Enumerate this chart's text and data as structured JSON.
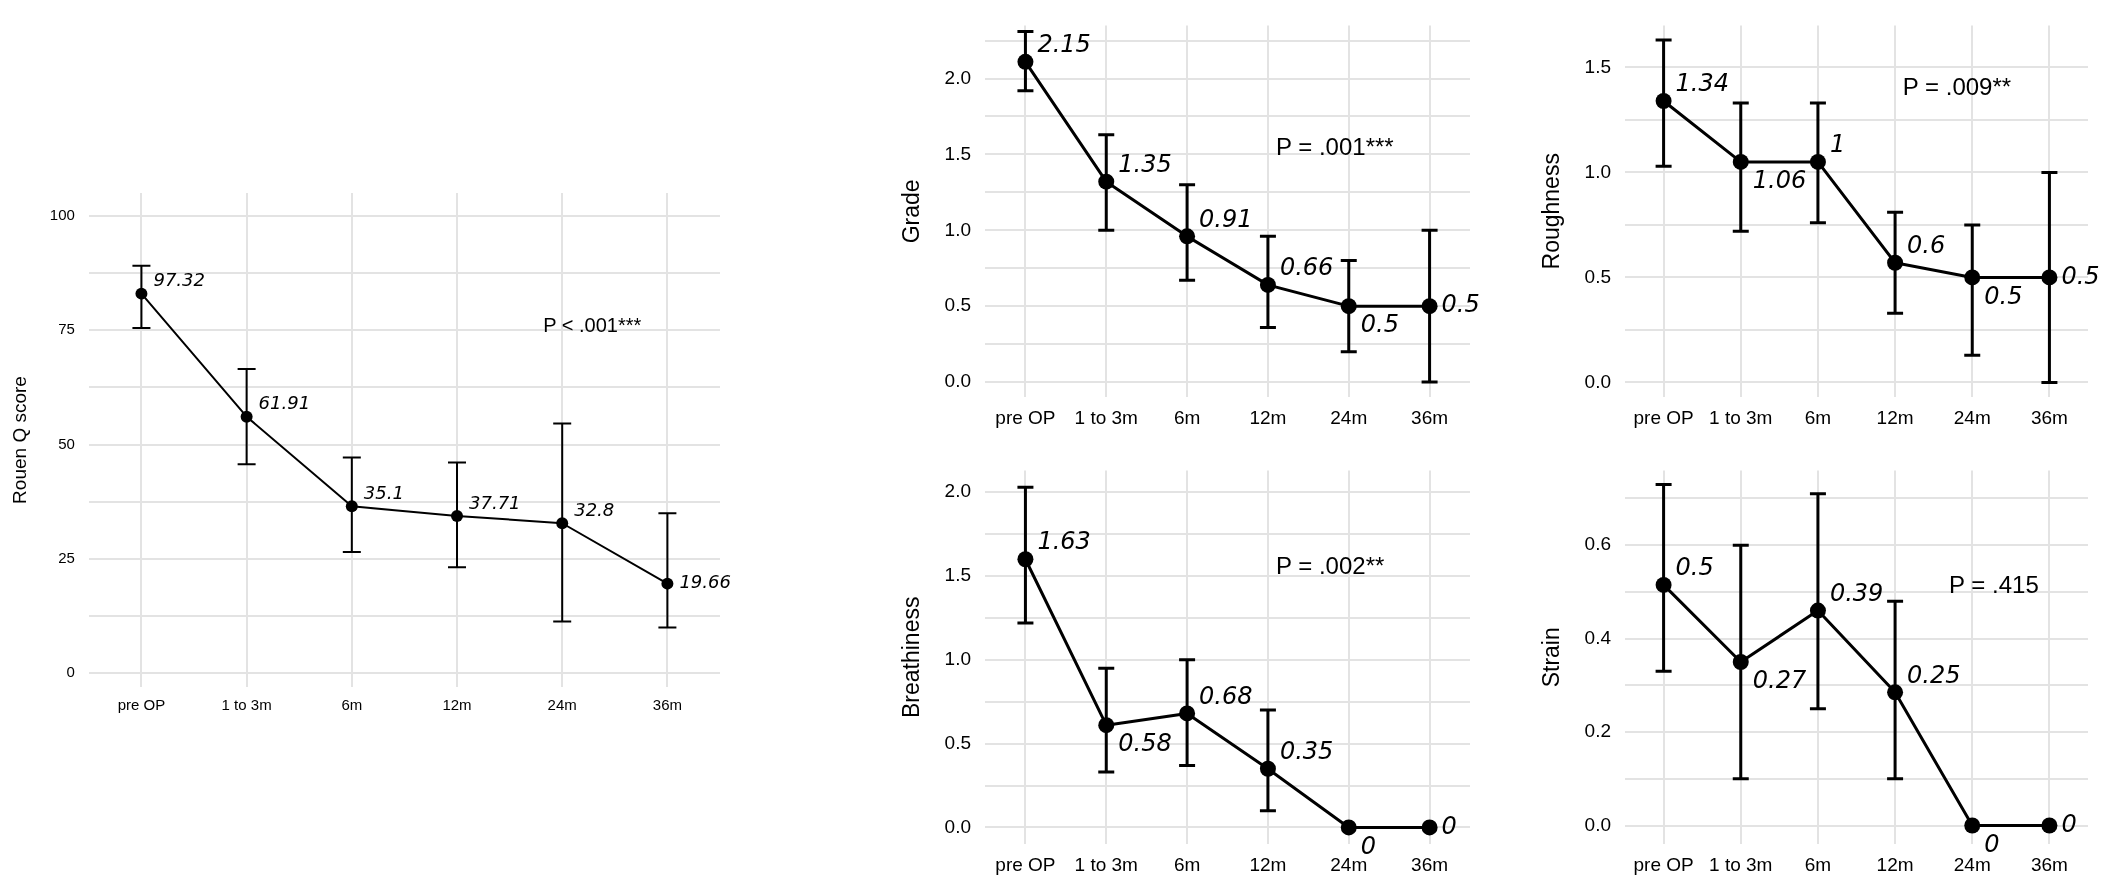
{
  "chart_data": [
    {
      "type": "line",
      "ylabel": "Rouen Q score",
      "categories": [
        "pre OP",
        "1 to 3m",
        "6m",
        "12m",
        "24m",
        "36m"
      ],
      "color": "#000000",
      "marker": "circle",
      "grid": true,
      "values": [
        83,
        56.1,
        36.5,
        34.4,
        32.8,
        19.6
      ],
      "errors": [
        [
          75.5,
          89.1
        ],
        [
          45.7,
          66.5
        ],
        [
          26.5,
          47.2
        ],
        [
          23.2,
          46.1
        ],
        [
          11.3,
          54.6
        ],
        [
          10,
          35
        ]
      ],
      "ylim": [
        -3,
        105
      ],
      "yticks": [
        0,
        {
          "value": 12.5,
          "label": null
        },
        25,
        {
          "value": 37.5,
          "label": null
        },
        50,
        {
          "value": 62.5,
          "label": null
        },
        75,
        {
          "value": 87.5,
          "label": null
        },
        100
      ],
      "annotations": [
        "P < .001***",
        {
          "text": "97.32",
          "x": "pre OP",
          "y": 83
        },
        {
          "text": "61.91",
          "x": "1 to 3m",
          "y": 56.1
        },
        {
          "text": "35.1",
          "x": "6m",
          "y": 36.5
        },
        {
          "text": "37.71",
          "x": "12m",
          "y": 34.4
        },
        {
          "text": "32.8",
          "x": "24m",
          "y": 32.8
        },
        {
          "text": "19.66",
          "x": "36m",
          "y": 19.6
        }
      ]
    },
    {
      "type": "line",
      "ylabel": "Grade",
      "categories": [
        "pre OP",
        "1 to 3m",
        "6m",
        "12m",
        "24m",
        "36m"
      ],
      "color": "#000000",
      "marker": "circle",
      "grid": true,
      "values": [
        2.11,
        1.32,
        0.96,
        0.64,
        0.5,
        0.5
      ],
      "errors": [
        [
          1.92,
          2.31
        ],
        [
          1,
          1.63
        ],
        [
          0.67,
          1.3
        ],
        [
          0.36,
          0.96
        ],
        [
          0.2,
          0.8
        ],
        [
          0,
          1
        ]
      ],
      "ylim": [
        -0.1,
        2.35
      ],
      "yticks": [
        {
          "value": 0,
          "label": "0.0"
        },
        {
          "value": 0.25,
          "label": null
        },
        0.5,
        {
          "value": 0.75,
          "label": null
        },
        {
          "value": 1,
          "label": "1.0"
        },
        {
          "value": 1.25,
          "label": null
        },
        1.5,
        {
          "value": 1.75,
          "label": null
        },
        {
          "value": 2,
          "label": "2.0"
        },
        {
          "value": 2.25,
          "label": null
        }
      ],
      "annotations": [
        "P = .001***",
        {
          "text": "2.15",
          "x": "pre OP",
          "y": 2.11
        },
        {
          "text": "1.35",
          "x": "1 to 3m",
          "y": 1.32
        },
        {
          "text": "0.91",
          "x": "6m",
          "y": 0.96
        },
        {
          "text": "0.66",
          "x": "12m",
          "y": 0.64
        },
        {
          "text": "0.5",
          "x": "24m",
          "y": 0.5
        },
        {
          "text": "0.5",
          "x": "36m",
          "y": 0.5
        }
      ]
    },
    {
      "type": "line",
      "ylabel": "Roughness",
      "categories": [
        "pre OP",
        "1 to 3m",
        "6m",
        "12m",
        "24m",
        "36m"
      ],
      "color": "#000000",
      "marker": "circle",
      "grid": true,
      "values": [
        1.34,
        1.05,
        1.05,
        0.57,
        0.5,
        0.5
      ],
      "errors": [
        [
          1.03,
          1.63
        ],
        [
          0.72,
          1.33
        ],
        [
          0.76,
          1.33
        ],
        [
          0.33,
          0.81
        ],
        [
          0.13,
          0.75
        ],
        [
          0,
          1
        ]
      ],
      "ylim": [
        -0.07,
        1.7
      ],
      "yticks": [
        {
          "value": 0,
          "label": "0.0"
        },
        {
          "value": 0.25,
          "label": null
        },
        0.5,
        {
          "value": 0.75,
          "label": null
        },
        {
          "value": 1,
          "label": "1.0"
        },
        {
          "value": 1.25,
          "label": null
        },
        1.5
      ],
      "annotations": [
        "P = .009**",
        {
          "text": "1.34",
          "x": "pre OP",
          "y": 1.34
        },
        {
          "text": "1.06",
          "x": "1 to 3m",
          "y": 1.05
        },
        {
          "text": "1",
          "x": "6m",
          "y": 1.05
        },
        {
          "text": "0.6",
          "x": "12m",
          "y": 0.57
        },
        {
          "text": "0.5",
          "x": "24m",
          "y": 0.5
        },
        {
          "text": "0.5",
          "x": "36m",
          "y": 0.5
        }
      ]
    },
    {
      "type": "line",
      "ylabel": "Breathiness",
      "categories": [
        "pre OP",
        "1 to 3m",
        "6m",
        "12m",
        "24m",
        "36m"
      ],
      "color": "#000000",
      "marker": "circle",
      "grid": true,
      "values": [
        1.6,
        0.61,
        0.68,
        0.35,
        0,
        0
      ],
      "errors": [
        [
          1.22,
          2.03
        ],
        [
          0.33,
          0.95
        ],
        [
          0.37,
          1
        ],
        [
          0.1,
          0.7
        ],
        null,
        null
      ],
      "ylim": [
        -0.1,
        2.13
      ],
      "yticks": [
        {
          "value": 0,
          "label": "0.0"
        },
        {
          "value": 0.25,
          "label": null
        },
        0.5,
        {
          "value": 0.75,
          "label": null
        },
        {
          "value": 1,
          "label": "1.0"
        },
        {
          "value": 1.25,
          "label": null
        },
        1.5,
        {
          "value": 1.75,
          "label": null
        },
        {
          "value": 2,
          "label": "2.0"
        }
      ],
      "annotations": [
        "P = .002**",
        {
          "text": "1.63",
          "x": "pre OP",
          "y": 1.6
        },
        {
          "text": "0.58",
          "x": "1 to 3m",
          "y": 0.61
        },
        {
          "text": "0.68",
          "x": "6m",
          "y": 0.68
        },
        {
          "text": "0.35",
          "x": "12m",
          "y": 0.35
        },
        {
          "text": "0",
          "x": "24m",
          "y": 0
        },
        {
          "text": "0",
          "x": "36m",
          "y": 0
        }
      ]
    },
    {
      "type": "line",
      "ylabel": "Strain",
      "categories": [
        "pre OP",
        "1 to 3m",
        "6m",
        "12m",
        "24m",
        "36m"
      ],
      "color": "#000000",
      "marker": "circle",
      "grid": true,
      "values": [
        0.515,
        0.35,
        0.46,
        0.285,
        0,
        0
      ],
      "errors": [
        [
          0.33,
          0.73
        ],
        [
          0.1,
          0.6
        ],
        [
          0.25,
          0.71
        ],
        [
          0.1,
          0.48
        ],
        null,
        null
      ],
      "ylim": [
        -0.04,
        0.76
      ],
      "yticks": [
        {
          "value": 0,
          "label": "0.0"
        },
        {
          "value": 0.1,
          "label": null
        },
        0.2,
        {
          "value": 0.3,
          "label": null
        },
        0.4,
        {
          "value": 0.5,
          "label": null
        },
        0.6,
        {
          "value": 0.7,
          "label": null
        }
      ],
      "annotations": [
        "P = .415",
        {
          "text": "0.5",
          "x": "pre OP",
          "y": 0.515
        },
        {
          "text": "0.27",
          "x": "1 to 3m",
          "y": 0.35
        },
        {
          "text": "0.39",
          "x": "6m",
          "y": 0.46
        },
        {
          "text": "0.25",
          "x": "12m",
          "y": 0.285
        },
        {
          "text": "0",
          "x": "24m",
          "y": 0
        },
        {
          "text": "0",
          "x": "36m",
          "y": 0
        }
      ]
    }
  ]
}
